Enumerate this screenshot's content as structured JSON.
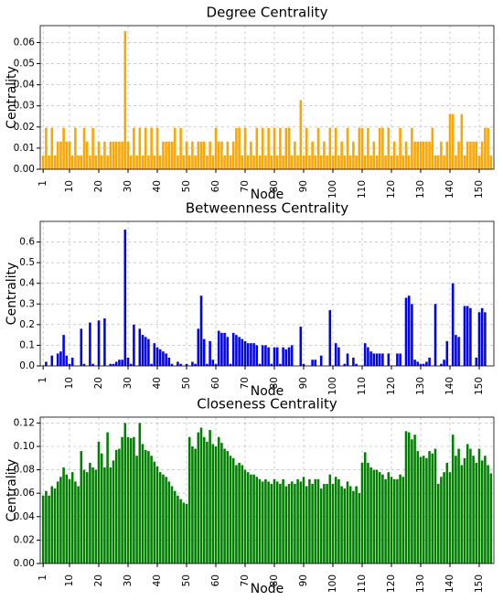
{
  "chart_data": [
    {
      "type": "bar",
      "title": "Degree Centrality",
      "xlabel": "Node",
      "ylabel": "Centrality",
      "color": "#ffa500",
      "grid": true,
      "x": [
        1,
        2,
        3,
        4,
        5,
        6,
        7,
        8,
        9,
        10,
        11,
        12,
        13,
        14,
        15,
        16,
        17,
        18,
        19,
        20,
        21,
        22,
        23,
        24,
        25,
        26,
        27,
        28,
        29,
        30,
        31,
        32,
        33,
        34,
        35,
        36,
        37,
        38,
        39,
        40,
        41,
        42,
        43,
        44,
        45,
        46,
        47,
        48,
        49,
        50,
        51,
        52,
        53,
        54,
        55,
        56,
        57,
        58,
        59,
        60,
        61,
        62,
        63,
        64,
        65,
        66,
        67,
        68,
        69,
        70,
        71,
        72,
        73,
        74,
        75,
        76,
        77,
        78,
        79,
        80,
        81,
        82,
        83,
        84,
        85,
        86,
        87,
        88,
        89,
        90,
        91,
        92,
        93,
        94,
        95,
        96,
        97,
        98,
        99,
        100,
        101,
        102,
        103,
        104,
        105,
        106,
        107,
        108,
        109,
        110,
        111,
        112,
        113,
        114,
        115,
        116,
        117,
        118,
        119,
        120,
        121,
        122,
        123,
        124,
        125,
        126,
        127,
        128,
        129,
        130,
        131,
        132,
        133,
        134,
        135,
        136,
        137,
        138,
        139,
        140,
        141,
        142,
        143,
        144,
        145,
        146,
        147,
        148,
        149,
        150,
        151,
        152,
        153,
        154
      ],
      "values": [
        0.0065,
        0.0196,
        0.0065,
        0.0196,
        0.0065,
        0.0131,
        0.0131,
        0.0196,
        0.0131,
        0.0131,
        0.0065,
        0.0196,
        0.0065,
        0.0065,
        0.0196,
        0.0131,
        0.0065,
        0.0196,
        0.0065,
        0.0131,
        0.0065,
        0.0131,
        0.0065,
        0.0131,
        0.0131,
        0.0131,
        0.0131,
        0.0131,
        0.0654,
        0.0131,
        0.0065,
        0.0196,
        0.0065,
        0.0196,
        0.0065,
        0.0196,
        0.0065,
        0.0196,
        0.0065,
        0.0196,
        0.0065,
        0.0131,
        0.0131,
        0.0131,
        0.0131,
        0.0196,
        0.0065,
        0.0196,
        0.0065,
        0.0131,
        0.0065,
        0.0131,
        0.0065,
        0.0131,
        0.0131,
        0.0131,
        0.0065,
        0.0131,
        0.0065,
        0.0196,
        0.0131,
        0.0131,
        0.0065,
        0.0131,
        0.0065,
        0.0131,
        0.0196,
        0.0196,
        0.0065,
        0.0196,
        0.0065,
        0.0131,
        0.0065,
        0.0196,
        0.0065,
        0.0196,
        0.0065,
        0.0196,
        0.0065,
        0.0196,
        0.0065,
        0.0196,
        0.0065,
        0.0196,
        0.0196,
        0.0065,
        0.0131,
        0.0065,
        0.0327,
        0.0065,
        0.0196,
        0.0065,
        0.0131,
        0.0065,
        0.0196,
        0.0065,
        0.0131,
        0.0065,
        0.0196,
        0.0065,
        0.0196,
        0.0065,
        0.0131,
        0.0065,
        0.0196,
        0.0065,
        0.0131,
        0.0065,
        0.0196,
        0.0196,
        0.0065,
        0.0196,
        0.0065,
        0.0131,
        0.0065,
        0.0196,
        0.0196,
        0.0065,
        0.0196,
        0.0065,
        0.0131,
        0.0065,
        0.0196,
        0.0065,
        0.0131,
        0.0065,
        0.0196,
        0.0131,
        0.0131,
        0.0131,
        0.0131,
        0.0131,
        0.0131,
        0.0196,
        0.0065,
        0.0065,
        0.0131,
        0.0065,
        0.0131,
        0.0261,
        0.0261,
        0.0065,
        0.0131,
        0.0261,
        0.0065,
        0.0131,
        0.0131,
        0.0131,
        0.0131,
        0.0065,
        0.0131,
        0.0196,
        0.0196,
        0.0065
      ],
      "xlim": [
        0,
        155
      ],
      "ylim": [
        0,
        0.068
      ],
      "xticks": [
        1,
        10,
        20,
        30,
        40,
        50,
        60,
        70,
        80,
        90,
        100,
        110,
        120,
        130,
        140,
        150
      ],
      "yticks": [
        {
          "value": 0,
          "label": "0.00"
        },
        0.01,
        0.02,
        0.03,
        0.04,
        0.05,
        0.06
      ]
    },
    {
      "type": "bar",
      "title": "Betweenness Centrality",
      "xlabel": "Node",
      "ylabel": "Centrality",
      "color": "#0000ff",
      "grid": true,
      "x": [
        1,
        2,
        3,
        4,
        5,
        6,
        7,
        8,
        9,
        10,
        11,
        12,
        13,
        14,
        15,
        16,
        17,
        18,
        19,
        20,
        21,
        22,
        23,
        24,
        25,
        26,
        27,
        28,
        29,
        30,
        31,
        32,
        33,
        34,
        35,
        36,
        37,
        38,
        39,
        40,
        41,
        42,
        43,
        44,
        45,
        46,
        47,
        48,
        49,
        50,
        51,
        52,
        53,
        54,
        55,
        56,
        57,
        58,
        59,
        60,
        61,
        62,
        63,
        64,
        65,
        66,
        67,
        68,
        69,
        70,
        71,
        72,
        73,
        74,
        75,
        76,
        77,
        78,
        79,
        80,
        81,
        82,
        83,
        84,
        85,
        86,
        87,
        88,
        89,
        90,
        91,
        92,
        93,
        94,
        95,
        96,
        97,
        98,
        99,
        100,
        101,
        102,
        103,
        104,
        105,
        106,
        107,
        108,
        109,
        110,
        111,
        112,
        113,
        114,
        115,
        116,
        117,
        118,
        119,
        120,
        121,
        122,
        123,
        124,
        125,
        126,
        127,
        128,
        129,
        130,
        131,
        132,
        133,
        134,
        135,
        136,
        137,
        138,
        139,
        140,
        141,
        142,
        143,
        144,
        145,
        146,
        147,
        148,
        149,
        150,
        151,
        152,
        153,
        154
      ],
      "values": [
        0,
        0.02,
        0,
        0.05,
        0,
        0.06,
        0.07,
        0.15,
        0.05,
        0.01,
        0.04,
        0,
        0,
        0.18,
        0.01,
        0,
        0.21,
        0.01,
        0,
        0.22,
        0,
        0.23,
        0,
        0.01,
        0.01,
        0.02,
        0.03,
        0.03,
        0.66,
        0.04,
        0.01,
        0.2,
        0,
        0.18,
        0.15,
        0.14,
        0.13,
        0.01,
        0.11,
        0.09,
        0.08,
        0.07,
        0.06,
        0.04,
        0.01,
        0,
        0.02,
        0.01,
        0,
        0.01,
        0,
        0.02,
        0.01,
        0.18,
        0.34,
        0.13,
        0.01,
        0.12,
        0.03,
        0.01,
        0.17,
        0.16,
        0.16,
        0.14,
        0.01,
        0.16,
        0.15,
        0.14,
        0.13,
        0.12,
        0.11,
        0.11,
        0.11,
        0.1,
        0.01,
        0.1,
        0.1,
        0.09,
        0.01,
        0.09,
        0.09,
        0.01,
        0.09,
        0.08,
        0.09,
        0.1,
        0,
        0,
        0.19,
        0.01,
        0,
        0,
        0.03,
        0.03,
        0,
        0.05,
        0,
        0,
        0.27,
        0,
        0.11,
        0.09,
        0,
        0.01,
        0.06,
        0,
        0.04,
        0.01,
        0,
        0,
        0.11,
        0.09,
        0.07,
        0.06,
        0.06,
        0.06,
        0.06,
        0,
        0.06,
        0,
        0,
        0.06,
        0.06,
        0,
        0.33,
        0.34,
        0.3,
        0.03,
        0.02,
        0.01,
        0.01,
        0.02,
        0.04,
        0,
        0.3,
        0,
        0.01,
        0.03,
        0.12,
        0,
        0.4,
        0.15,
        0.14,
        0,
        0.29,
        0.29,
        0.28,
        0,
        0.04,
        0.26,
        0.28,
        0.26,
        0,
        0
      ],
      "xlim": [
        0,
        155
      ],
      "ylim": [
        0,
        0.7
      ],
      "xticks": [
        1,
        10,
        20,
        30,
        40,
        50,
        60,
        70,
        80,
        90,
        100,
        110,
        120,
        130,
        140,
        150
      ],
      "yticks": [
        {
          "value": 0,
          "label": "0.0"
        },
        0.1,
        0.2,
        0.3,
        0.4,
        0.5,
        0.6
      ]
    },
    {
      "type": "bar",
      "title": "Closeness Centrality",
      "xlabel": "Node",
      "ylabel": "Centrality",
      "color": "#008000",
      "grid": true,
      "x": [
        1,
        2,
        3,
        4,
        5,
        6,
        7,
        8,
        9,
        10,
        11,
        12,
        13,
        14,
        15,
        16,
        17,
        18,
        19,
        20,
        21,
        22,
        23,
        24,
        25,
        26,
        27,
        28,
        29,
        30,
        31,
        32,
        33,
        34,
        35,
        36,
        37,
        38,
        39,
        40,
        41,
        42,
        43,
        44,
        45,
        46,
        47,
        48,
        49,
        50,
        51,
        52,
        53,
        54,
        55,
        56,
        57,
        58,
        59,
        60,
        61,
        62,
        63,
        64,
        65,
        66,
        67,
        68,
        69,
        70,
        71,
        72,
        73,
        74,
        75,
        76,
        77,
        78,
        79,
        80,
        81,
        82,
        83,
        84,
        85,
        86,
        87,
        88,
        89,
        90,
        91,
        92,
        93,
        94,
        95,
        96,
        97,
        98,
        99,
        100,
        101,
        102,
        103,
        104,
        105,
        106,
        107,
        108,
        109,
        110,
        111,
        112,
        113,
        114,
        115,
        116,
        117,
        118,
        119,
        120,
        121,
        122,
        123,
        124,
        125,
        126,
        127,
        128,
        129,
        130,
        131,
        132,
        133,
        134,
        135,
        136,
        137,
        138,
        139,
        140,
        141,
        142,
        143,
        144,
        145,
        146,
        147,
        148,
        149,
        150,
        151,
        152,
        153,
        154
      ],
      "values": [
        0.058,
        0.062,
        0.058,
        0.066,
        0.064,
        0.07,
        0.074,
        0.082,
        0.076,
        0.072,
        0.078,
        0.07,
        0.066,
        0.096,
        0.08,
        0.078,
        0.086,
        0.082,
        0.08,
        0.104,
        0.094,
        0.082,
        0.112,
        0.082,
        0.088,
        0.097,
        0.098,
        0.108,
        0.12,
        0.108,
        0.107,
        0.108,
        0.092,
        0.12,
        0.102,
        0.097,
        0.096,
        0.092,
        0.087,
        0.083,
        0.078,
        0.076,
        0.074,
        0.07,
        0.066,
        0.062,
        0.058,
        0.055,
        0.052,
        0.051,
        0.108,
        0.1,
        0.098,
        0.112,
        0.116,
        0.108,
        0.104,
        0.114,
        0.102,
        0.1,
        0.108,
        0.103,
        0.098,
        0.096,
        0.092,
        0.09,
        0.084,
        0.086,
        0.084,
        0.08,
        0.078,
        0.076,
        0.076,
        0.074,
        0.072,
        0.07,
        0.072,
        0.07,
        0.068,
        0.072,
        0.07,
        0.068,
        0.072,
        0.066,
        0.068,
        0.07,
        0.068,
        0.072,
        0.07,
        0.074,
        0.066,
        0.072,
        0.068,
        0.072,
        0.072,
        0.064,
        0.068,
        0.068,
        0.076,
        0.068,
        0.074,
        0.072,
        0.066,
        0.064,
        0.07,
        0.066,
        0.062,
        0.066,
        0.06,
        0.086,
        0.095,
        0.086,
        0.082,
        0.08,
        0.08,
        0.078,
        0.076,
        0.072,
        0.078,
        0.074,
        0.072,
        0.072,
        0.076,
        0.074,
        0.113,
        0.112,
        0.106,
        0.11,
        0.096,
        0.091,
        0.092,
        0.09,
        0.096,
        0.094,
        0.098,
        0.068,
        0.074,
        0.078,
        0.086,
        0.078,
        0.11,
        0.092,
        0.098,
        0.084,
        0.09,
        0.102,
        0.098,
        0.092,
        0.086,
        0.098,
        0.088,
        0.092,
        0.084,
        0.077
      ],
      "xlim": [
        0,
        155
      ],
      "ylim": [
        0,
        0.125
      ],
      "xticks": [
        1,
        10,
        20,
        30,
        40,
        50,
        60,
        70,
        80,
        90,
        100,
        110,
        120,
        130,
        140,
        150
      ],
      "yticks": [
        {
          "value": 0,
          "label": "0.00"
        },
        0.02,
        0.04,
        0.06,
        0.08,
        {
          "value": 0.1,
          "label": "0.10"
        },
        0.12
      ]
    }
  ]
}
